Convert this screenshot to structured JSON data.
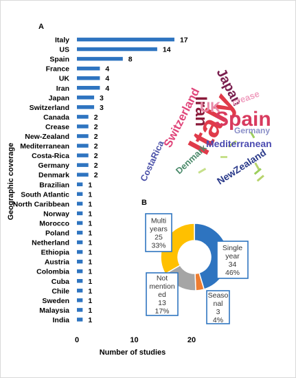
{
  "chart_data": [
    {
      "type": "bar",
      "orientation": "horizontal",
      "panel_label": "A",
      "categories": [
        "Italy",
        "US",
        "Spain",
        "France",
        "UK",
        "Iran",
        "Japan",
        "Switzerland",
        "Canada",
        "Crease",
        "New-Zealand",
        "Mediterranean",
        "Costa-Rica",
        "Germany",
        "Denmark",
        "Brazilian",
        "South Atlantic",
        "North Caribbean",
        "Norway",
        "Morocco",
        "Poland",
        "Netherland",
        "Ethiopia",
        "Austria",
        "Colombia",
        "Cuba",
        "Chile",
        "Sweden",
        "Malaysia",
        "India"
      ],
      "values": [
        17,
        14,
        8,
        4,
        4,
        4,
        3,
        3,
        2,
        2,
        2,
        2,
        2,
        2,
        2,
        1,
        1,
        1,
        1,
        1,
        1,
        1,
        1,
        1,
        1,
        1,
        1,
        1,
        1,
        1
      ],
      "xlabel": "Number of studies",
      "ylabel": "Geographic coverage",
      "xticks": [
        "0",
        "10",
        "20"
      ],
      "xlim": [
        0,
        25
      ],
      "grid": false,
      "bar_color": "#2e74c0"
    },
    {
      "type": "pie",
      "variant": "donut",
      "panel_label": "B",
      "slices": [
        {
          "label_lines": [
            "Single",
            "year",
            "34",
            "46%"
          ],
          "value": 34,
          "percent": 46,
          "color": "#2e74c0"
        },
        {
          "label_lines": [
            "Seaso",
            "nal",
            "3",
            "4%"
          ],
          "value": 3,
          "percent": 4,
          "color": "#ed7d31"
        },
        {
          "label_lines": [
            "Not",
            "mention",
            "ed",
            "13",
            "17%"
          ],
          "value": 13,
          "percent": 17,
          "color": "#a5a5a5"
        },
        {
          "label_lines": [
            "Multi",
            "years",
            "25",
            "33%"
          ],
          "value": 25,
          "percent": 33,
          "color": "#ffc000"
        }
      ]
    }
  ],
  "word_cloud": {
    "words": [
      {
        "text": "Italy",
        "color": "#e03a4a"
      },
      {
        "text": "Spain",
        "color": "#d83a5e"
      },
      {
        "text": "Iran",
        "color": "#8b1a3a"
      },
      {
        "text": "Japan",
        "color": "#7a1f4f"
      },
      {
        "text": "UK",
        "color": "#e88aa8"
      },
      {
        "text": "Switzerland",
        "color": "#e0457a"
      },
      {
        "text": "crease",
        "color": "#f0a0c0"
      },
      {
        "text": "Germany",
        "color": "#8a8fc8"
      },
      {
        "text": "Mediterranean",
        "color": "#4a4ab0"
      },
      {
        "text": "CostaRica",
        "color": "#4a50a8"
      },
      {
        "text": "Denmark",
        "color": "#4a8a6a"
      },
      {
        "text": "NewZealand",
        "color": "#2a3a8a"
      }
    ]
  }
}
